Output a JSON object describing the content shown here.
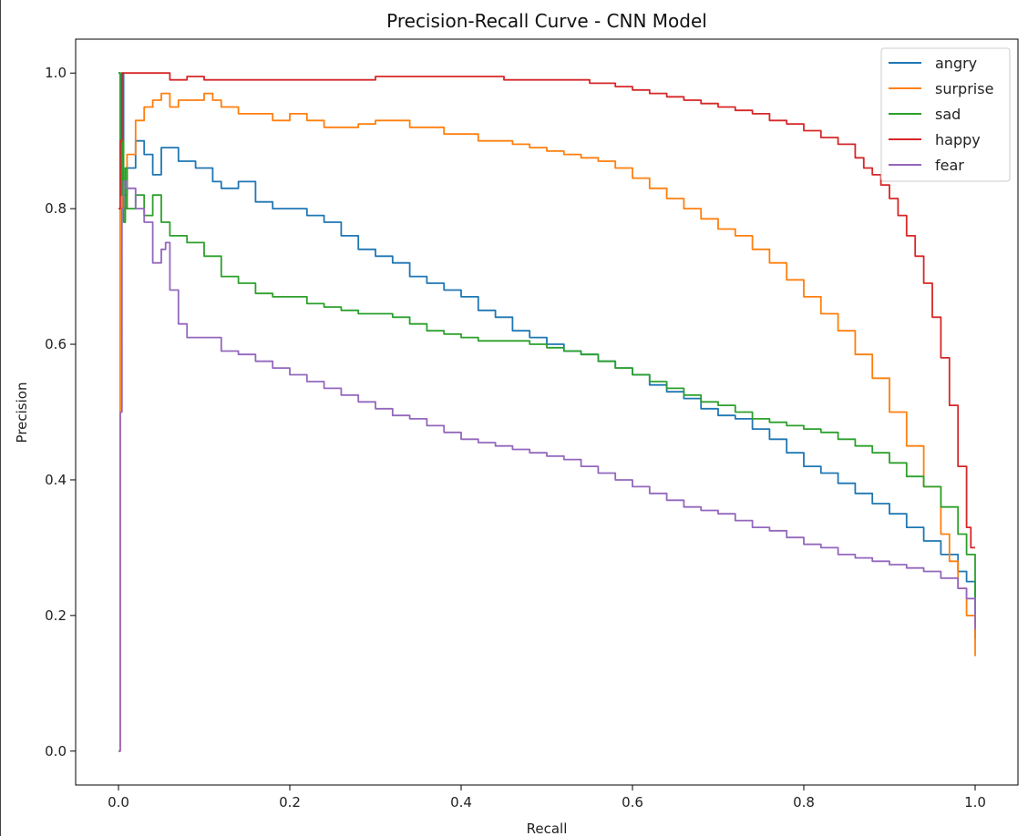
{
  "chart_data": {
    "type": "line",
    "title": "Precision-Recall Curve - CNN Model",
    "xlabel": "Recall",
    "ylabel": "Precision",
    "xlim": [
      -0.05,
      1.05
    ],
    "ylim": [
      -0.05,
      1.05
    ],
    "xticks": [
      0.0,
      0.2,
      0.4,
      0.6,
      0.8,
      1.0
    ],
    "yticks": [
      0.0,
      0.2,
      0.4,
      0.6,
      0.8,
      1.0
    ],
    "xtick_labels": [
      "0.0",
      "0.2",
      "0.4",
      "0.6",
      "0.8",
      "1.0"
    ],
    "ytick_labels": [
      "0.0",
      "0.2",
      "0.4",
      "0.6",
      "0.8",
      "1.0"
    ],
    "grid": false,
    "legend_position": "top-right",
    "series": [
      {
        "name": "angry",
        "color": "#1f77b4",
        "x": [
          0.0,
          0.002,
          0.004,
          0.006,
          0.01,
          0.02,
          0.03,
          0.04,
          0.05,
          0.07,
          0.09,
          0.1,
          0.11,
          0.12,
          0.14,
          0.16,
          0.18,
          0.2,
          0.22,
          0.24,
          0.26,
          0.28,
          0.3,
          0.32,
          0.34,
          0.36,
          0.38,
          0.4,
          0.42,
          0.44,
          0.46,
          0.48,
          0.5,
          0.52,
          0.54,
          0.56,
          0.58,
          0.6,
          0.62,
          0.64,
          0.66,
          0.68,
          0.7,
          0.72,
          0.74,
          0.76,
          0.78,
          0.8,
          0.82,
          0.84,
          0.86,
          0.88,
          0.9,
          0.92,
          0.94,
          0.96,
          0.98,
          0.99,
          1.0
        ],
        "y": [
          1.0,
          0.82,
          1.0,
          0.82,
          0.86,
          0.9,
          0.88,
          0.85,
          0.89,
          0.87,
          0.86,
          0.86,
          0.84,
          0.83,
          0.84,
          0.81,
          0.8,
          0.8,
          0.79,
          0.78,
          0.76,
          0.74,
          0.73,
          0.72,
          0.7,
          0.69,
          0.68,
          0.67,
          0.65,
          0.64,
          0.62,
          0.61,
          0.6,
          0.59,
          0.585,
          0.575,
          0.565,
          0.555,
          0.54,
          0.53,
          0.52,
          0.505,
          0.495,
          0.49,
          0.475,
          0.46,
          0.44,
          0.42,
          0.41,
          0.395,
          0.38,
          0.365,
          0.35,
          0.33,
          0.31,
          0.29,
          0.265,
          0.25,
          0.165
        ]
      },
      {
        "name": "surprise",
        "color": "#ff7f0e",
        "x": [
          0.0,
          0.002,
          0.004,
          0.006,
          0.01,
          0.02,
          0.03,
          0.04,
          0.05,
          0.06,
          0.07,
          0.08,
          0.1,
          0.11,
          0.12,
          0.14,
          0.16,
          0.18,
          0.2,
          0.22,
          0.24,
          0.26,
          0.28,
          0.3,
          0.32,
          0.34,
          0.36,
          0.38,
          0.4,
          0.42,
          0.44,
          0.46,
          0.48,
          0.5,
          0.52,
          0.54,
          0.56,
          0.58,
          0.6,
          0.62,
          0.64,
          0.66,
          0.68,
          0.7,
          0.72,
          0.74,
          0.76,
          0.78,
          0.8,
          0.82,
          0.84,
          0.86,
          0.88,
          0.9,
          0.92,
          0.94,
          0.96,
          0.97,
          0.98,
          0.99,
          1.0
        ],
        "y": [
          0.0,
          0.8,
          0.85,
          0.8,
          0.88,
          0.93,
          0.95,
          0.96,
          0.97,
          0.95,
          0.96,
          0.96,
          0.97,
          0.96,
          0.95,
          0.94,
          0.94,
          0.93,
          0.94,
          0.93,
          0.92,
          0.92,
          0.925,
          0.93,
          0.93,
          0.92,
          0.92,
          0.91,
          0.91,
          0.9,
          0.9,
          0.895,
          0.89,
          0.885,
          0.88,
          0.875,
          0.87,
          0.86,
          0.845,
          0.83,
          0.815,
          0.8,
          0.785,
          0.77,
          0.76,
          0.74,
          0.72,
          0.695,
          0.67,
          0.645,
          0.62,
          0.585,
          0.55,
          0.5,
          0.45,
          0.39,
          0.32,
          0.28,
          0.24,
          0.2,
          0.14
        ]
      },
      {
        "name": "sad",
        "color": "#2ca02c",
        "x": [
          0.0,
          0.002,
          0.004,
          0.006,
          0.008,
          0.01,
          0.02,
          0.03,
          0.04,
          0.05,
          0.06,
          0.08,
          0.1,
          0.12,
          0.14,
          0.16,
          0.18,
          0.2,
          0.22,
          0.24,
          0.26,
          0.28,
          0.3,
          0.32,
          0.34,
          0.36,
          0.38,
          0.4,
          0.42,
          0.44,
          0.46,
          0.48,
          0.5,
          0.52,
          0.54,
          0.56,
          0.58,
          0.6,
          0.62,
          0.64,
          0.66,
          0.68,
          0.7,
          0.72,
          0.74,
          0.76,
          0.78,
          0.8,
          0.82,
          0.84,
          0.86,
          0.88,
          0.9,
          0.92,
          0.94,
          0.96,
          0.98,
          0.99,
          1.0
        ],
        "y": [
          1.0,
          0.82,
          0.9,
          0.78,
          0.86,
          0.8,
          0.82,
          0.79,
          0.82,
          0.78,
          0.76,
          0.75,
          0.73,
          0.7,
          0.69,
          0.675,
          0.67,
          0.67,
          0.66,
          0.655,
          0.65,
          0.645,
          0.645,
          0.64,
          0.63,
          0.62,
          0.615,
          0.61,
          0.605,
          0.605,
          0.605,
          0.6,
          0.595,
          0.59,
          0.585,
          0.575,
          0.565,
          0.555,
          0.545,
          0.535,
          0.525,
          0.515,
          0.51,
          0.5,
          0.49,
          0.485,
          0.48,
          0.475,
          0.47,
          0.46,
          0.45,
          0.44,
          0.425,
          0.405,
          0.39,
          0.36,
          0.32,
          0.29,
          0.21
        ]
      },
      {
        "name": "happy",
        "color": "#d62728",
        "x": [
          0.0,
          0.002,
          0.004,
          0.01,
          0.02,
          0.04,
          0.06,
          0.08,
          0.1,
          0.15,
          0.2,
          0.3,
          0.4,
          0.45,
          0.5,
          0.55,
          0.58,
          0.6,
          0.62,
          0.64,
          0.66,
          0.68,
          0.7,
          0.72,
          0.74,
          0.76,
          0.78,
          0.8,
          0.82,
          0.84,
          0.86,
          0.87,
          0.88,
          0.89,
          0.9,
          0.91,
          0.92,
          0.93,
          0.94,
          0.95,
          0.96,
          0.97,
          0.98,
          0.99,
          0.995,
          1.0
        ],
        "y": [
          0.8,
          0.9,
          1.0,
          1.0,
          1.0,
          1.0,
          0.99,
          0.995,
          0.99,
          0.99,
          0.99,
          0.995,
          0.995,
          0.99,
          0.99,
          0.985,
          0.98,
          0.975,
          0.97,
          0.965,
          0.96,
          0.955,
          0.95,
          0.945,
          0.94,
          0.93,
          0.925,
          0.915,
          0.905,
          0.895,
          0.875,
          0.86,
          0.85,
          0.835,
          0.815,
          0.79,
          0.76,
          0.73,
          0.69,
          0.64,
          0.58,
          0.51,
          0.42,
          0.33,
          0.3,
          0.3
        ]
      },
      {
        "name": "fear",
        "color": "#9467bd",
        "x": [
          0.0,
          0.002,
          0.004,
          0.006,
          0.01,
          0.02,
          0.03,
          0.04,
          0.05,
          0.055,
          0.06,
          0.07,
          0.08,
          0.1,
          0.12,
          0.14,
          0.16,
          0.18,
          0.2,
          0.22,
          0.24,
          0.26,
          0.28,
          0.3,
          0.32,
          0.34,
          0.36,
          0.38,
          0.4,
          0.42,
          0.44,
          0.46,
          0.48,
          0.5,
          0.52,
          0.54,
          0.56,
          0.58,
          0.6,
          0.62,
          0.64,
          0.66,
          0.68,
          0.7,
          0.72,
          0.74,
          0.76,
          0.78,
          0.8,
          0.82,
          0.84,
          0.86,
          0.88,
          0.9,
          0.92,
          0.94,
          0.96,
          0.98,
          0.99,
          1.0
        ],
        "y": [
          0.0,
          0.5,
          0.8,
          0.84,
          0.83,
          0.8,
          0.78,
          0.72,
          0.74,
          0.75,
          0.68,
          0.63,
          0.61,
          0.61,
          0.59,
          0.585,
          0.575,
          0.565,
          0.555,
          0.545,
          0.535,
          0.525,
          0.515,
          0.505,
          0.495,
          0.49,
          0.48,
          0.47,
          0.46,
          0.455,
          0.45,
          0.445,
          0.44,
          0.435,
          0.43,
          0.42,
          0.41,
          0.4,
          0.39,
          0.38,
          0.37,
          0.36,
          0.355,
          0.35,
          0.34,
          0.33,
          0.325,
          0.315,
          0.305,
          0.3,
          0.29,
          0.285,
          0.28,
          0.275,
          0.27,
          0.265,
          0.255,
          0.24,
          0.225,
          0.18
        ]
      }
    ]
  }
}
